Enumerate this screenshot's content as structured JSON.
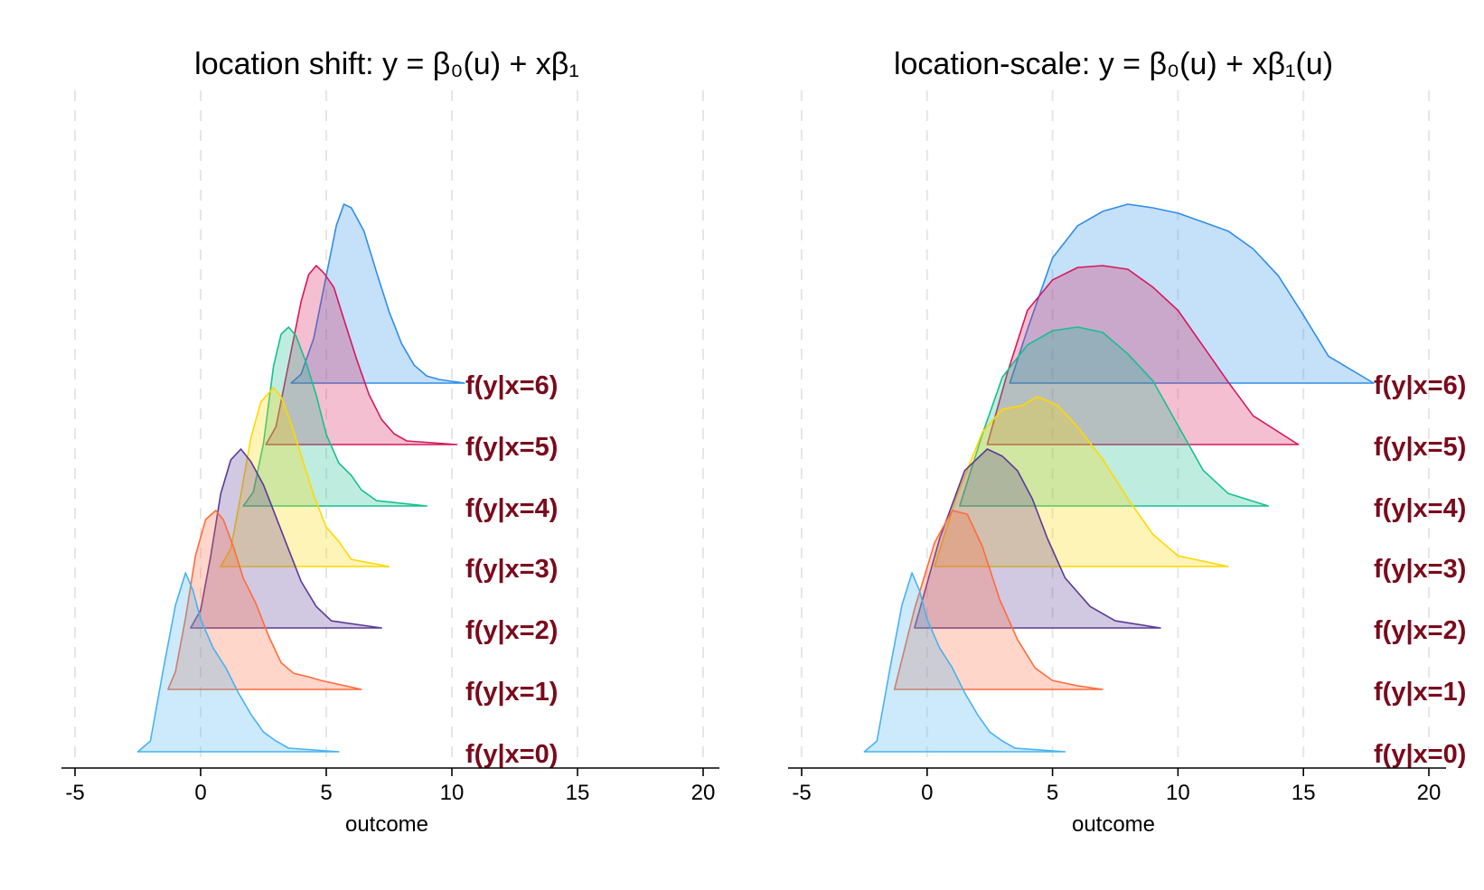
{
  "chart_data": [
    {
      "type": "area",
      "title": "location shift: y = β₀(u) + xβ₁",
      "xlabel": "outcome",
      "xlim": [
        -5.6,
        20.6
      ],
      "xticks": [
        -5,
        0,
        5,
        10,
        15,
        20
      ],
      "grid": true,
      "series": [
        {
          "name": "f(y|x=0)",
          "color": "#48b2f0",
          "x": [
            -2.5,
            -2.0,
            -1.5,
            -1.0,
            -0.6,
            -0.3,
            0.0,
            0.5,
            1.0,
            1.5,
            2.0,
            2.5,
            3.0,
            3.5,
            5.5
          ],
          "y": [
            0.0,
            0.06,
            0.45,
            0.82,
            1.0,
            0.9,
            0.74,
            0.58,
            0.47,
            0.33,
            0.21,
            0.11,
            0.06,
            0.02,
            0.0
          ]
        },
        {
          "name": "f(y|x=1)",
          "color": "#ff6b3d",
          "x": [
            -1.3,
            -1.0,
            -0.6,
            -0.2,
            0.2,
            0.6,
            0.9,
            1.3,
            1.7,
            2.2,
            2.7,
            3.2,
            3.7,
            4.3,
            4.8,
            6.4
          ],
          "y": [
            0.0,
            0.1,
            0.4,
            0.75,
            0.95,
            1.0,
            0.95,
            0.8,
            0.62,
            0.48,
            0.3,
            0.15,
            0.09,
            0.07,
            0.05,
            0.0
          ]
        },
        {
          "name": "f(y|x=2)",
          "color": "#5a3a96",
          "x": [
            -0.4,
            0.0,
            0.4,
            0.8,
            1.2,
            1.6,
            2.0,
            2.5,
            3.0,
            3.5,
            4.0,
            4.6,
            5.2,
            7.2
          ],
          "y": [
            0.0,
            0.1,
            0.4,
            0.75,
            0.94,
            1.0,
            0.93,
            0.8,
            0.62,
            0.44,
            0.26,
            0.12,
            0.04,
            0.0
          ]
        },
        {
          "name": "f(y|x=3)",
          "color": "#ffd800",
          "x": [
            0.8,
            1.2,
            1.6,
            2.0,
            2.4,
            2.9,
            3.2,
            3.6,
            4.0,
            4.5,
            5.0,
            5.5,
            6.0,
            7.5
          ],
          "y": [
            0.0,
            0.1,
            0.4,
            0.72,
            0.92,
            1.0,
            0.95,
            0.8,
            0.62,
            0.4,
            0.22,
            0.14,
            0.04,
            0.0
          ]
        },
        {
          "name": "f(y|x=4)",
          "color": "#16c08e",
          "x": [
            1.7,
            2.1,
            2.5,
            2.9,
            3.2,
            3.5,
            3.8,
            4.2,
            4.6,
            5.0,
            5.5,
            6.0,
            6.4,
            7.0,
            9.0
          ],
          "y": [
            0.0,
            0.08,
            0.35,
            0.78,
            0.96,
            1.0,
            0.95,
            0.8,
            0.62,
            0.4,
            0.24,
            0.17,
            0.09,
            0.03,
            0.0
          ]
        },
        {
          "name": "f(y|x=5)",
          "color": "#d6185a",
          "x": [
            2.6,
            3.0,
            3.5,
            4.0,
            4.3,
            4.6,
            4.9,
            5.3,
            5.7,
            6.2,
            6.7,
            7.2,
            7.7,
            8.2,
            10.2
          ],
          "y": [
            0.0,
            0.1,
            0.45,
            0.8,
            0.95,
            1.0,
            0.96,
            0.88,
            0.7,
            0.48,
            0.28,
            0.14,
            0.06,
            0.02,
            0.0
          ]
        },
        {
          "name": "f(y|x=6)",
          "color": "#2f8ee8",
          "x": [
            3.6,
            4.0,
            4.5,
            5.0,
            5.4,
            5.7,
            6.0,
            6.5,
            7.0,
            7.5,
            8.0,
            8.5,
            9.0,
            9.5,
            10.5
          ],
          "y": [
            0.0,
            0.05,
            0.25,
            0.6,
            0.88,
            1.0,
            0.98,
            0.85,
            0.62,
            0.4,
            0.22,
            0.1,
            0.04,
            0.02,
            0.0
          ]
        }
      ]
    },
    {
      "type": "area",
      "title": "location-scale: y = β₀(u) + xβ₁(u)",
      "xlabel": "outcome",
      "xlim": [
        -5.6,
        20.6
      ],
      "xticks": [
        -5,
        0,
        5,
        10,
        15,
        20
      ],
      "grid": true,
      "series": [
        {
          "name": "f(y|x=0)",
          "color": "#48b2f0",
          "x": [
            -2.5,
            -2.0,
            -1.5,
            -1.0,
            -0.6,
            -0.3,
            0.0,
            0.5,
            1.0,
            1.5,
            2.0,
            2.5,
            3.0,
            3.5,
            5.5
          ],
          "y": [
            0.0,
            0.06,
            0.45,
            0.82,
            1.0,
            0.9,
            0.74,
            0.58,
            0.47,
            0.33,
            0.21,
            0.11,
            0.06,
            0.02,
            0.0
          ]
        },
        {
          "name": "f(y|x=1)",
          "color": "#ff6b3d",
          "x": [
            -1.3,
            -0.5,
            0.3,
            1.0,
            1.6,
            2.2,
            2.9,
            3.6,
            4.3,
            5.0,
            6.0,
            7.0
          ],
          "y": [
            0.0,
            0.45,
            0.82,
            1.0,
            0.98,
            0.8,
            0.5,
            0.28,
            0.12,
            0.05,
            0.02,
            0.0
          ]
        },
        {
          "name": "f(y|x=2)",
          "color": "#5a3a96",
          "x": [
            -0.5,
            0.5,
            1.5,
            2.4,
            3.0,
            3.6,
            4.2,
            4.8,
            5.5,
            6.5,
            7.5,
            9.3
          ],
          "y": [
            0.0,
            0.5,
            0.88,
            1.0,
            0.96,
            0.88,
            0.72,
            0.5,
            0.28,
            0.12,
            0.04,
            0.0
          ]
        },
        {
          "name": "f(y|x=3)",
          "color": "#ffd800",
          "x": [
            0.3,
            1.2,
            2.2,
            3.0,
            3.8,
            4.4,
            5.2,
            6.0,
            7.0,
            8.0,
            9.0,
            10.0,
            12.0
          ],
          "y": [
            0.0,
            0.4,
            0.75,
            0.88,
            0.9,
            0.95,
            0.9,
            0.78,
            0.6,
            0.38,
            0.18,
            0.06,
            0.0
          ]
        },
        {
          "name": "f(y|x=4)",
          "color": "#16c08e",
          "x": [
            1.3,
            2.2,
            3.0,
            4.0,
            5.0,
            6.0,
            7.0,
            8.0,
            9.0,
            10.0,
            11.0,
            12.0,
            13.6
          ],
          "y": [
            0.0,
            0.4,
            0.72,
            0.9,
            0.98,
            1.0,
            0.97,
            0.85,
            0.7,
            0.45,
            0.2,
            0.07,
            0.0
          ]
        },
        {
          "name": "f(y|x=5)",
          "color": "#d6185a",
          "x": [
            2.4,
            3.2,
            4.0,
            5.0,
            6.0,
            7.0,
            8.0,
            9.0,
            10.0,
            11.0,
            12.0,
            13.0,
            14.8
          ],
          "y": [
            0.0,
            0.4,
            0.75,
            0.92,
            0.99,
            1.0,
            0.98,
            0.88,
            0.75,
            0.55,
            0.35,
            0.16,
            0.0
          ]
        },
        {
          "name": "f(y|x=6)",
          "color": "#2f8ee8",
          "x": [
            3.3,
            4.0,
            5.0,
            6.0,
            7.0,
            8.0,
            9.0,
            10.0,
            11.0,
            12.0,
            13.0,
            14.0,
            15.0,
            16.0,
            17.8
          ],
          "y": [
            0.0,
            0.3,
            0.7,
            0.88,
            0.96,
            1.0,
            0.98,
            0.95,
            0.9,
            0.85,
            0.75,
            0.6,
            0.38,
            0.15,
            0.0
          ]
        }
      ]
    }
  ]
}
